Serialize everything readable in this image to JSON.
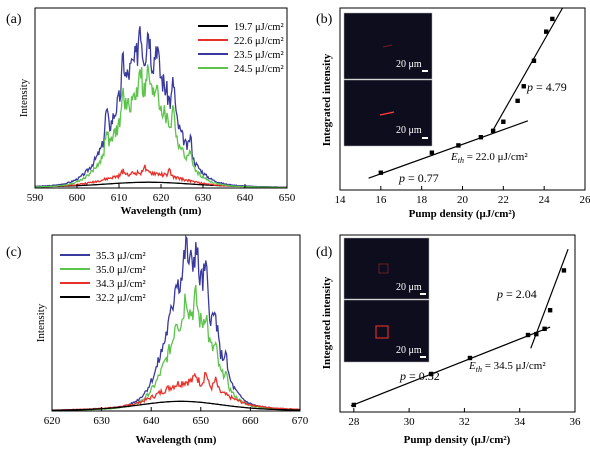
{
  "chart_data": [
    {
      "panel": "(a)",
      "type": "line",
      "xlabel": "Wavelength (nm)",
      "ylabel": "Intensity",
      "xlim": [
        590,
        650
      ],
      "ylim": [
        0,
        1
      ],
      "xticks": [
        "590",
        "600",
        "610",
        "620",
        "630",
        "640",
        "650"
      ],
      "legend_position": "top-right",
      "series": [
        {
          "name": "19.7 μJ/cm²",
          "color": "#000000",
          "center": 617,
          "width": 13,
          "amp": 0.02,
          "base": 0.012,
          "spikes": [],
          "ripple": 0.0,
          "seed": 1
        },
        {
          "name": "22.6 μJ/cm²",
          "color": "#e8312a",
          "center": 616,
          "width": 11,
          "amp": 0.07,
          "base": 0.015,
          "spikes": [
            [
              611,
              0.03
            ],
            [
              616,
              0.035
            ],
            [
              622,
              0.03
            ]
          ],
          "ripple": 0.15,
          "seed": 2
        },
        {
          "name": "23.5 μJ/cm²",
          "color": "#3a3a9e",
          "center": 616,
          "width": 9,
          "amp": 0.72,
          "base": 0.03,
          "spikes": [
            [
              607,
              0.14
            ],
            [
              611,
              0.16
            ],
            [
              615,
              0.2
            ],
            [
              617,
              0.16
            ],
            [
              619,
              0.14
            ],
            [
              623,
              0.17
            ],
            [
              627,
              0.1
            ]
          ],
          "ripple": 0.12,
          "seed": 3
        },
        {
          "name": "24.5 μJ/cm²",
          "color": "#5cc44a",
          "center": 616,
          "width": 9,
          "amp": 0.52,
          "base": 0.02,
          "spikes": [
            [
              607,
              0.12
            ],
            [
              611,
              0.13
            ],
            [
              615,
              0.16
            ],
            [
              617,
              0.12
            ],
            [
              619,
              0.11
            ],
            [
              623,
              0.15
            ],
            [
              627,
              0.08
            ]
          ],
          "ripple": 0.12,
          "seed": 4
        }
      ]
    },
    {
      "panel": "(b)",
      "type": "scatter",
      "xlabel": "Pump density (μJ/cm²)",
      "ylabel": "Integrated intensity",
      "xlim": [
        14,
        26
      ],
      "ylim": [
        0,
        1
      ],
      "xticks": [
        "14",
        "16",
        "18",
        "20",
        "22",
        "24",
        "26"
      ],
      "points": [
        [
          16.0,
          0.095
        ],
        [
          18.5,
          0.205
        ],
        [
          19.8,
          0.245
        ],
        [
          20.9,
          0.29
        ],
        [
          21.5,
          0.325
        ],
        [
          22.0,
          0.375
        ],
        [
          22.7,
          0.49
        ],
        [
          23.0,
          0.57
        ],
        [
          23.5,
          0.71
        ],
        [
          24.1,
          0.87
        ],
        [
          24.4,
          0.94
        ]
      ],
      "fits": [
        {
          "x": [
            15.4,
            23.2
          ],
          "y": [
            0.065,
            0.38
          ]
        },
        {
          "x": [
            21.5,
            24.9
          ],
          "y": [
            0.33,
            1.0
          ]
        }
      ],
      "annotations": {
        "slope_high": "4.79",
        "slope_low": "0.77",
        "eth_label": "E",
        "eth_sub": "th",
        "eth_value": " = 22.0 μJ/cm²"
      },
      "inset_scale_labels": [
        "20 μm",
        "20 μm"
      ]
    },
    {
      "panel": "(c)",
      "type": "line",
      "xlabel": "Wavelength (nm)",
      "ylabel": "Intensity",
      "xlim": [
        620,
        670
      ],
      "ylim": [
        0,
        1
      ],
      "xticks": [
        "620",
        "630",
        "640",
        "650",
        "660",
        "670"
      ],
      "legend_position": "top-left",
      "series": [
        {
          "name": "35.3 μJ/cm²",
          "color": "#3a3a9e",
          "center": 648,
          "width": 6,
          "amp": 0.78,
          "base": 0.05,
          "spikes": [
            [
              645,
              0.1
            ],
            [
              647,
              0.14
            ],
            [
              649,
              0.12
            ],
            [
              651,
              0.14
            ],
            [
              653,
              0.1
            ],
            [
              655,
              0.08
            ]
          ],
          "ripple": 0.12,
          "seed": 5
        },
        {
          "name": "35.0 μJ/cm²",
          "color": "#5cc44a",
          "center": 648,
          "width": 6,
          "amp": 0.52,
          "base": 0.04,
          "spikes": [
            [
              645,
              0.08
            ],
            [
              647,
              0.12
            ],
            [
              649,
              0.1
            ],
            [
              651,
              0.12
            ],
            [
              653,
              0.07
            ],
            [
              655,
              0.05
            ]
          ],
          "ripple": 0.12,
          "seed": 6
        },
        {
          "name": "34.3 μJ/cm²",
          "color": "#e8312a",
          "center": 648,
          "width": 8,
          "amp": 0.14,
          "base": 0.03,
          "spikes": [
            [
              649,
              0.04
            ],
            [
              651,
              0.07
            ],
            [
              653,
              0.05
            ]
          ],
          "ripple": 0.15,
          "seed": 7
        },
        {
          "name": "32.2 μJ/cm²",
          "color": "#000000",
          "center": 646,
          "width": 11,
          "amp": 0.045,
          "base": 0.01,
          "spikes": [],
          "ripple": 0.0,
          "seed": 8
        }
      ]
    },
    {
      "panel": "(d)",
      "type": "scatter",
      "xlabel": "Pump density (μJ/cm²)",
      "ylabel": "Integrated intensity",
      "xlim": [
        27.5,
        36
      ],
      "ylim": [
        0,
        1
      ],
      "xticks": [
        "28",
        "30",
        "32",
        "34",
        "36"
      ],
      "points": [
        [
          28.0,
          0.04
        ],
        [
          30.8,
          0.215
        ],
        [
          32.2,
          0.305
        ],
        [
          34.3,
          0.435
        ],
        [
          34.6,
          0.44
        ],
        [
          34.9,
          0.47
        ],
        [
          35.1,
          0.575
        ],
        [
          35.6,
          0.8
        ]
      ],
      "fits": [
        {
          "x": [
            27.9,
            35.1
          ],
          "y": [
            0.035,
            0.48
          ]
        },
        {
          "x": [
            34.4,
            35.75
          ],
          "y": [
            0.36,
            0.92
          ]
        }
      ],
      "annotations": {
        "slope_high": "2.04",
        "slope_low": "0.32",
        "eth_label": "E",
        "eth_sub": "th",
        "eth_value": " = 34.5 μJ/cm²"
      },
      "inset_scale_labels": [
        "20 μm",
        "20 μm"
      ]
    }
  ]
}
